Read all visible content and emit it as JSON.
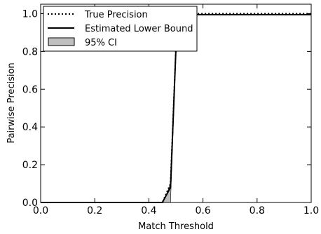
{
  "chart_data": {
    "type": "line",
    "xlabel": "Match Threshold",
    "ylabel": "Pairwise Precision",
    "xlim": [
      0.0,
      1.0
    ],
    "ylim": [
      0.0,
      1.05
    ],
    "xticks": [
      "0.0",
      "0.2",
      "0.4",
      "0.6",
      "0.8",
      "1.0"
    ],
    "yticks": [
      "0.0",
      "0.2",
      "0.4",
      "0.6",
      "0.8",
      "1.0"
    ],
    "grid": false,
    "legend_position": "top-left",
    "series": [
      {
        "name": "True Precision",
        "style": "dotted",
        "x": [
          0.0,
          0.45,
          0.48,
          0.505,
          1.0
        ],
        "y": [
          0.0,
          0.0,
          0.1,
          1.0,
          1.0
        ]
      },
      {
        "name": "Estimated Lower Bound",
        "style": "solid",
        "x": [
          0.0,
          0.45,
          0.48,
          0.505,
          1.0
        ],
        "y": [
          0.0,
          0.0,
          0.08,
          0.995,
          0.995
        ]
      }
    ],
    "ci": {
      "name": "95% CI",
      "x": [
        0.45,
        0.47,
        0.48,
        0.505
      ],
      "lower": [
        0.0,
        0.0,
        0.0,
        0.98
      ],
      "upper": [
        0.0,
        0.06,
        0.1,
        1.0
      ]
    },
    "colors": {
      "line": "#000000",
      "ci_fill": "#bfbfbf"
    }
  }
}
